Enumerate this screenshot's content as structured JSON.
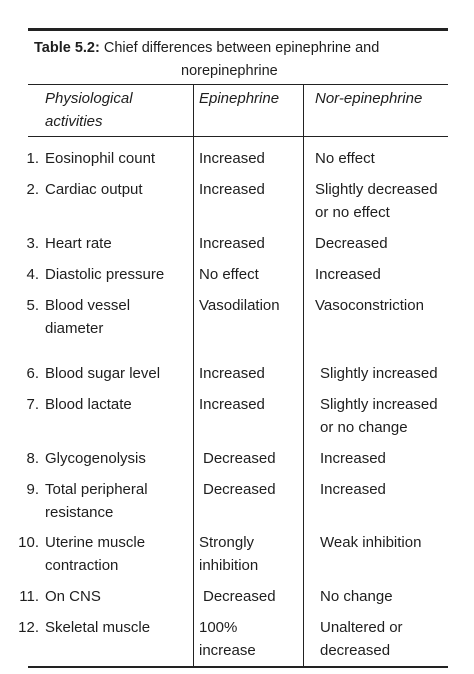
{
  "table": {
    "label": "Table 5.2:",
    "caption": "Chief differences between epinephrine and",
    "caption_line2": "norepinephrine",
    "headers": [
      [
        "Physiological",
        "activities"
      ],
      [
        "Epinephrine"
      ],
      [
        "Nor-epinephrine"
      ]
    ],
    "rows": [
      {
        "num": "1.",
        "activity": [
          "Eosinophil count"
        ],
        "epinephrine": [
          "Increased"
        ],
        "norepinephrine": [
          "No effect"
        ]
      },
      {
        "num": "2.",
        "activity": [
          "Cardiac output"
        ],
        "epinephrine": [
          "Increased"
        ],
        "norepinephrine": [
          "Slightly decreased",
          "or no effect"
        ]
      },
      {
        "num": "3.",
        "activity": [
          "Heart rate"
        ],
        "epinephrine": [
          "Increased"
        ],
        "norepinephrine": [
          "Decreased"
        ]
      },
      {
        "num": "4.",
        "activity": [
          "Diastolic pressure"
        ],
        "epinephrine": [
          "No effect"
        ],
        "norepinephrine": [
          "Increased"
        ]
      },
      {
        "num": "5.",
        "activity": [
          "Blood vessel",
          "diameter"
        ],
        "epinephrine": [
          "Vasodilation"
        ],
        "norepinephrine": [
          "Vasoconstriction"
        ]
      },
      {
        "num": "6.",
        "activity": [
          "Blood sugar level"
        ],
        "epinephrine": [
          "Increased"
        ],
        "norepinephrine": [
          "Slightly increased"
        ]
      },
      {
        "num": "7.",
        "activity": [
          "Blood lactate"
        ],
        "epinephrine": [
          "Increased"
        ],
        "norepinephrine": [
          "Slightly increased",
          "or no change"
        ]
      },
      {
        "num": "8.",
        "activity": [
          "Glycogenolysis"
        ],
        "epinephrine": [
          "Decreased"
        ],
        "norepinephrine": [
          "Increased"
        ]
      },
      {
        "num": "9.",
        "activity": [
          "Total peripheral",
          "resistance"
        ],
        "epinephrine": [
          "Decreased"
        ],
        "norepinephrine": [
          "Increased"
        ]
      },
      {
        "num": "10.",
        "activity": [
          "Uterine muscle",
          "contraction"
        ],
        "epinephrine": [
          "Strongly",
          "inhibition"
        ],
        "norepinephrine": [
          "Weak inhibition"
        ]
      },
      {
        "num": "11.",
        "activity": [
          "On CNS"
        ],
        "epinephrine": [
          "Decreased"
        ],
        "norepinephrine": [
          "No change"
        ]
      },
      {
        "num": "12.",
        "activity": [
          "Skeletal muscle"
        ],
        "epinephrine": [
          "100%",
          "increase"
        ],
        "norepinephrine": [
          "Unaltered or",
          "decreased"
        ]
      }
    ]
  }
}
